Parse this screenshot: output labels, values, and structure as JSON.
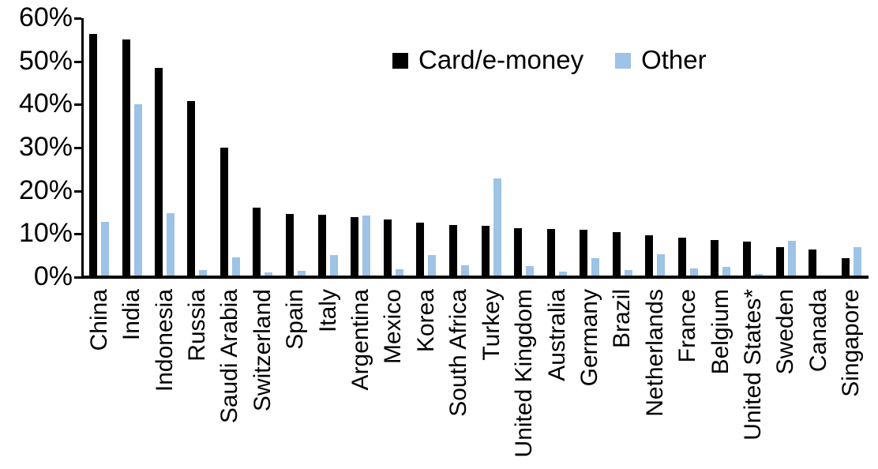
{
  "chart_data": {
    "type": "bar",
    "title": "",
    "xlabel": "",
    "ylabel": "",
    "ylim": [
      0,
      60
    ],
    "yticks": [
      "60%",
      "50%",
      "40%",
      "30%",
      "20%",
      "10%",
      "0%"
    ],
    "grid": false,
    "legend_position": "top-center",
    "categories": [
      "China",
      "India",
      "Indonesia",
      "Russia",
      "Saudi Arabia",
      "Switzerland",
      "Spain",
      "Italy",
      "Argentina",
      "Mexico",
      "Korea",
      "South Africa",
      "Turkey",
      "United Kingdom",
      "Australia",
      "Germany",
      "Brazil",
      "Netherlands",
      "France",
      "Belgium",
      "United States*",
      "Sweden",
      "Canada",
      "Singapore"
    ],
    "series": [
      {
        "name": "Card/e-money",
        "color": "#000000",
        "values": [
          56.3,
          55.1,
          48.4,
          40.6,
          29.9,
          15.8,
          14.3,
          14.2,
          13.6,
          13.0,
          12.3,
          11.8,
          11.6,
          11.1,
          10.8,
          10.6,
          10.1,
          9.3,
          8.8,
          8.3,
          8.0,
          6.6,
          6.0,
          4.0
        ]
      },
      {
        "name": "Other",
        "color": "#9DC3E6",
        "values": [
          12.5,
          39.9,
          14.6,
          1.2,
          4.2,
          0.8,
          1.1,
          4.7,
          13.9,
          1.4,
          4.7,
          2.4,
          22.6,
          2.3,
          1.0,
          4.0,
          1.2,
          4.9,
          1.6,
          2.1,
          0.4,
          8.1,
          0.0,
          6.7
        ]
      }
    ]
  }
}
